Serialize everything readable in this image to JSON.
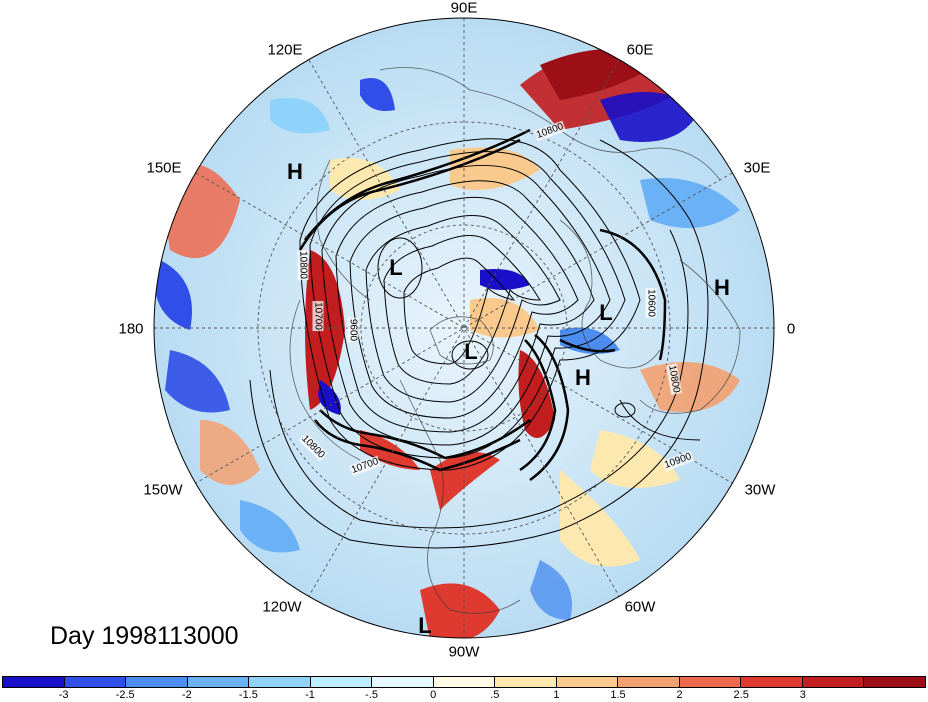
{
  "title": "Day 1998113000",
  "longitude_labels": [
    {
      "id": "lon-90e",
      "text": "90E"
    },
    {
      "id": "lon-60e",
      "text": "60E"
    },
    {
      "id": "lon-30e",
      "text": "30E"
    },
    {
      "id": "lon-0",
      "text": "0"
    },
    {
      "id": "lon-30w",
      "text": "30W"
    },
    {
      "id": "lon-60w",
      "text": "60W"
    },
    {
      "id": "lon-90w",
      "text": "90W"
    },
    {
      "id": "lon-120w",
      "text": "120W"
    },
    {
      "id": "lon-150w",
      "text": "150W"
    },
    {
      "id": "lon-180",
      "text": "180"
    },
    {
      "id": "lon-150e",
      "text": "150E"
    },
    {
      "id": "lon-120e",
      "text": "120E"
    }
  ],
  "pressure_centers": [
    {
      "id": "h-siberia",
      "text": "H"
    },
    {
      "id": "l-east-asia",
      "text": "L"
    },
    {
      "id": "l-pole",
      "text": "L"
    },
    {
      "id": "l-scandinavia",
      "text": "L"
    },
    {
      "id": "h-atlantic",
      "text": "H"
    },
    {
      "id": "h-africa",
      "text": "H"
    },
    {
      "id": "l-tropics",
      "text": "L"
    }
  ],
  "contour_labels": [
    {
      "id": "c-10800-asia",
      "text": "10800"
    },
    {
      "id": "c-10800-pacific",
      "text": "10800"
    },
    {
      "id": "c-10700-pacific",
      "text": "10700"
    },
    {
      "id": "c-9600",
      "text": "9600"
    },
    {
      "id": "c-10600-europe",
      "text": "10600"
    },
    {
      "id": "c-10800-atl",
      "text": "10800"
    },
    {
      "id": "c-10900-atl",
      "text": "10900"
    },
    {
      "id": "c-10800-sw",
      "text": "10800"
    },
    {
      "id": "c-10700-sw",
      "text": "10700"
    }
  ],
  "colorbar": {
    "colors": [
      "#1a0fc8",
      "#2f4fe8",
      "#4c8ef0",
      "#6ab2f5",
      "#8fd3fb",
      "#bdeeff",
      "#e6f8ff",
      "#fffbe6",
      "#fde9b0",
      "#f9c98d",
      "#f3a170",
      "#ee6a4c",
      "#df3a30",
      "#c21d1f",
      "#9c0f17"
    ],
    "ticks": [
      "-3",
      "-2.5",
      "-2",
      "-1.5",
      "-1",
      "-.5",
      "0",
      ".5",
      "1",
      "1.5",
      "2",
      "2.5",
      "3"
    ]
  },
  "colors": {
    "ocean_neutral": "#d6ecf7",
    "warm": "#e0463a",
    "cold": "#2c52d8"
  }
}
